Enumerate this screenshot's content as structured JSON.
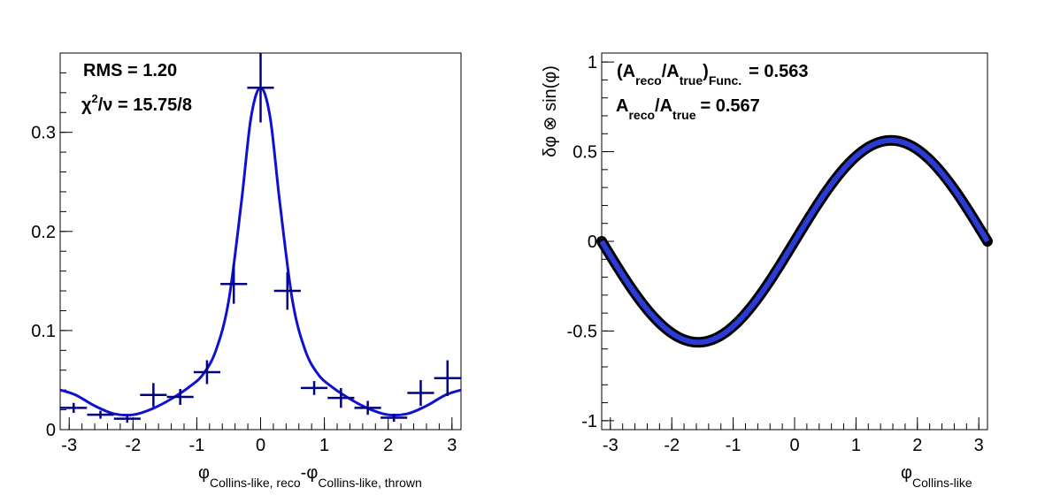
{
  "colors": {
    "fit": "#1010d0",
    "points": "#000080",
    "axis": "#000000",
    "band": "#2b3bd6"
  },
  "chart_data": [
    {
      "type": "scatter",
      "xlabel": {
        "main": "φ",
        "sub1": "Collins-like, reco",
        "mid": "-φ",
        "sub2": "Collins-like, thrown"
      },
      "xlim": [
        -3.14159,
        3.14159
      ],
      "ylim": [
        0,
        0.38
      ],
      "xticks": [
        -3,
        -2,
        -1,
        0,
        1,
        2,
        3
      ],
      "yticks": [
        0,
        0.1,
        0.2,
        0.3
      ],
      "ytick_labels": [
        "0",
        "0.1",
        "0.2",
        "0.3"
      ],
      "annotations": {
        "rms": "RMS = 1.20",
        "chi_sym": "χ",
        "chi_sup": "2",
        "chi_rest": "/ν = 15.75/8"
      },
      "series": [
        {
          "kind": "points",
          "x": [
            -2.93,
            -2.51,
            -2.09,
            -1.68,
            -1.26,
            -0.84,
            -0.42,
            0.0,
            0.42,
            0.84,
            1.26,
            1.68,
            2.09,
            2.51,
            2.93
          ],
          "y": [
            0.022,
            0.015,
            0.011,
            0.035,
            0.033,
            0.058,
            0.147,
            0.345,
            0.14,
            0.042,
            0.032,
            0.022,
            0.012,
            0.037,
            0.052
          ],
          "yerr": [
            0.005,
            0.004,
            0.004,
            0.012,
            0.008,
            0.012,
            0.02,
            0.035,
            0.019,
            0.007,
            0.01,
            0.007,
            0.004,
            0.013,
            0.018
          ],
          "xerr": 0.209
        },
        {
          "kind": "fit-curve",
          "x": [
            -3.14,
            -2.9,
            -2.6,
            -2.3,
            -2.0,
            -1.7,
            -1.4,
            -1.1,
            -0.9,
            -0.7,
            -0.5,
            -0.3,
            -0.15,
            0.0,
            0.15,
            0.3,
            0.5,
            0.7,
            0.9,
            1.1,
            1.4,
            1.7,
            2.0,
            2.3,
            2.6,
            2.9,
            3.14
          ],
          "y": [
            0.04,
            0.035,
            0.024,
            0.016,
            0.015,
            0.021,
            0.031,
            0.044,
            0.056,
            0.08,
            0.13,
            0.23,
            0.315,
            0.345,
            0.315,
            0.23,
            0.13,
            0.08,
            0.056,
            0.044,
            0.031,
            0.021,
            0.015,
            0.016,
            0.024,
            0.035,
            0.04
          ]
        }
      ]
    },
    {
      "type": "line",
      "ylabel": "δφ ⊗ sin(φ)",
      "xlabel": {
        "main": "φ",
        "sub1": "Collins-like"
      },
      "xlim": [
        -3.14159,
        3.14159
      ],
      "ylim": [
        -1.05,
        1.05
      ],
      "xticks": [
        -3,
        -2,
        -1,
        0,
        1,
        2,
        3
      ],
      "yticks": [
        -1,
        -0.5,
        0,
        0.5,
        1
      ],
      "ytick_labels": [
        "-1",
        "-0.5",
        "0",
        "0.5",
        "1"
      ],
      "annotations": {
        "line1_open": "(A",
        "line1_sub1": "reco",
        "line1_mid": "/A",
        "line1_sub2": "true",
        "line1_close": ")",
        "line1_sub3": "Func.",
        "line1_value": "= 0.563",
        "line2_a": "A",
        "line2_sub1": "reco",
        "line2_mid": "/A",
        "line2_sub2": "true",
        "line2_value": "= 0.567"
      },
      "series": [
        {
          "kind": "sine",
          "amplitude": 0.563,
          "function": "0.563·sin(φ)"
        }
      ]
    }
  ]
}
